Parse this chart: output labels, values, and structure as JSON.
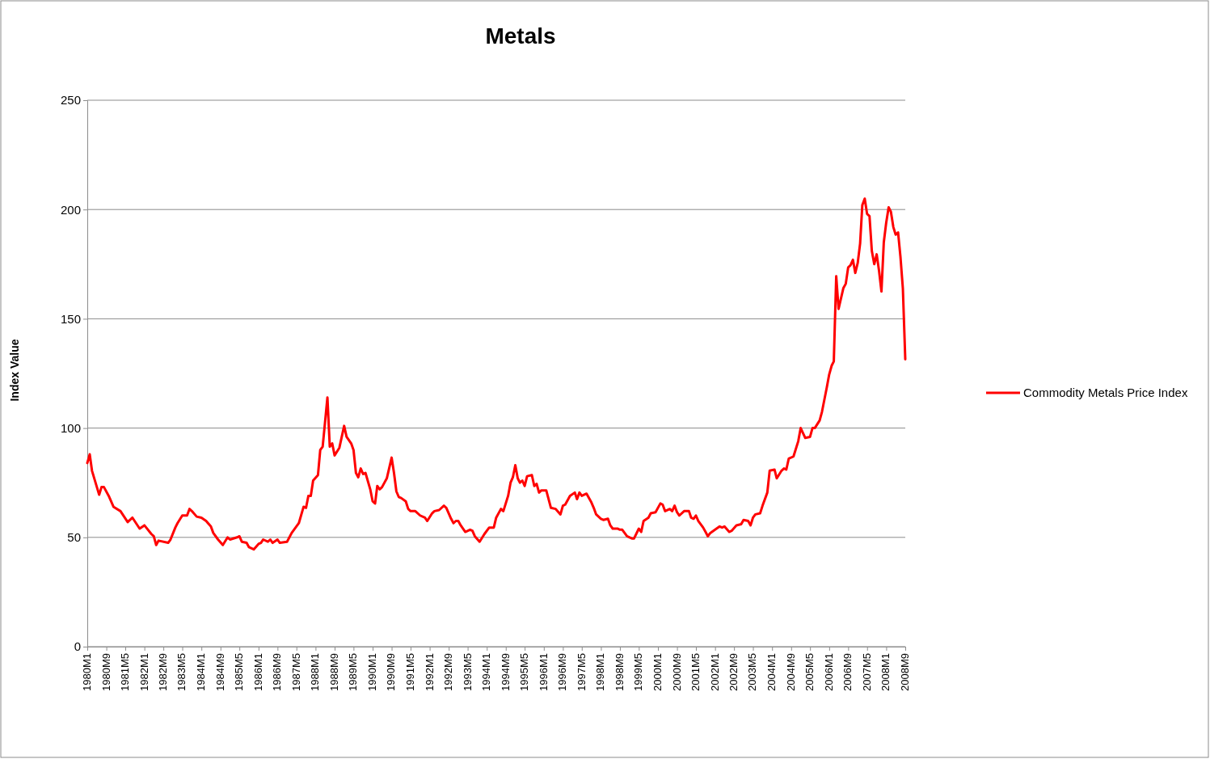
{
  "chart_data": {
    "type": "line",
    "title": "Metals",
    "ylabel": "Index Value",
    "x": [
      "1980-01",
      "1980-02",
      "1980-03",
      "1980-06",
      "1980-07",
      "1980-08",
      "1980-10",
      "1980-12",
      "1981-03",
      "1981-06",
      "1981-08",
      "1981-11",
      "1982-01",
      "1982-04",
      "1982-05",
      "1982-06",
      "1982-07",
      "1982-11",
      "1982-12",
      "1983-02",
      "1983-03",
      "1983-05",
      "1983-07",
      "1983-08",
      "1983-09",
      "1983-11",
      "1984-01",
      "1984-03",
      "1984-05",
      "1984-06",
      "1984-08",
      "1984-10",
      "1984-12",
      "1985-01",
      "1985-04",
      "1985-05",
      "1985-06",
      "1985-08",
      "1985-09",
      "1985-11",
      "1986-01",
      "1986-02",
      "1986-03",
      "1986-05",
      "1986-06",
      "1986-07",
      "1986-09",
      "1986-10",
      "1987-01",
      "1987-03",
      "1987-06",
      "1987-08",
      "1987-09",
      "1987-10",
      "1987-11",
      "1987-12",
      "1988-02",
      "1988-03",
      "1988-04",
      "1988-06",
      "1988-07",
      "1988-08",
      "1988-09",
      "1988-11",
      "1989-01",
      "1989-02",
      "1989-04",
      "1989-05",
      "1989-06",
      "1989-07",
      "1989-08",
      "1989-09",
      "1989-10",
      "1989-12",
      "1990-01",
      "1990-02",
      "1990-03",
      "1990-04",
      "1990-05",
      "1990-07",
      "1990-09",
      "1990-10",
      "1990-11",
      "1990-12",
      "1991-01",
      "1991-03",
      "1991-04",
      "1991-05",
      "1991-07",
      "1991-09",
      "1991-11",
      "1991-12",
      "1992-02",
      "1992-03",
      "1992-05",
      "1992-07",
      "1992-08",
      "1992-10",
      "1992-11",
      "1992-12",
      "1993-01",
      "1993-02",
      "1993-04",
      "1993-06",
      "1993-07",
      "1993-08",
      "1993-10",
      "1993-12",
      "1994-02",
      "1994-04",
      "1994-05",
      "1994-07",
      "1994-08",
      "1994-10",
      "1994-11",
      "1994-12",
      "1995-01",
      "1995-02",
      "1995-03",
      "1995-04",
      "1995-05",
      "1995-06",
      "1995-08",
      "1995-09",
      "1995-10",
      "1995-11",
      "1995-12",
      "1996-02",
      "1996-04",
      "1996-06",
      "1996-08",
      "1996-09",
      "1996-10",
      "1996-12",
      "1997-02",
      "1997-03",
      "1997-04",
      "1997-05",
      "1997-07",
      "1997-09",
      "1997-10",
      "1997-11",
      "1998-01",
      "1998-02",
      "1998-04",
      "1998-05",
      "1998-06",
      "1998-08",
      "1998-09",
      "1998-10",
      "1998-12",
      "1999-02",
      "1999-03",
      "1999-05",
      "1999-06",
      "1999-07",
      "1999-09",
      "1999-10",
      "1999-12",
      "2000-02",
      "2000-03",
      "2000-04",
      "2000-06",
      "2000-07",
      "2000-08",
      "2000-09",
      "2000-10",
      "2000-12",
      "2001-02",
      "2001-03",
      "2001-04",
      "2001-05",
      "2001-06",
      "2001-08",
      "2001-09",
      "2001-10",
      "2001-11",
      "2002-01",
      "2002-03",
      "2002-04",
      "2002-05",
      "2002-07",
      "2002-08",
      "2002-10",
      "2002-12",
      "2003-01",
      "2003-03",
      "2003-04",
      "2003-05",
      "2003-06",
      "2003-08",
      "2003-09",
      "2003-11",
      "2003-12",
      "2004-02",
      "2004-03",
      "2004-05",
      "2004-06",
      "2004-07",
      "2004-08",
      "2004-10",
      "2004-12",
      "2005-01",
      "2005-03",
      "2005-05",
      "2005-06",
      "2005-07",
      "2005-09",
      "2005-10",
      "2005-12",
      "2006-01",
      "2006-02",
      "2006-03",
      "2006-04",
      "2006-05",
      "2006-07",
      "2006-08",
      "2006-09",
      "2006-10",
      "2006-11",
      "2006-12",
      "2007-01",
      "2007-02",
      "2007-03",
      "2007-04",
      "2007-05",
      "2007-06",
      "2007-07",
      "2007-08",
      "2007-09",
      "2007-10",
      "2007-11",
      "2007-12",
      "2008-01",
      "2008-02",
      "2008-03",
      "2008-04",
      "2008-05",
      "2008-06",
      "2008-07",
      "2008-08",
      "2008-09"
    ],
    "series": [
      {
        "name": "Commodity Metals Price Index",
        "color": "#ff0000",
        "values": [
          84,
          88,
          80.5,
          69.5,
          73,
          73,
          69,
          64,
          62,
          57,
          59,
          54,
          55.5,
          51.5,
          50.5,
          46.5,
          48.5,
          47.5,
          49,
          54.5,
          56.5,
          60,
          60,
          63,
          62,
          59.5,
          59,
          57.5,
          55,
          52,
          49,
          46.5,
          50,
          49,
          50,
          50.5,
          48,
          47.5,
          45.5,
          44.5,
          47,
          47.5,
          49,
          48,
          49,
          47.5,
          49,
          47.5,
          48,
          52,
          56.5,
          64,
          63.5,
          69,
          69,
          76,
          78.5,
          90,
          91.5,
          114,
          91.5,
          93,
          87.5,
          91,
          101,
          96,
          93,
          90,
          79.5,
          77.5,
          81.5,
          79,
          79.5,
          72,
          66.5,
          65.5,
          73.5,
          72,
          73,
          77,
          86.5,
          79.5,
          71,
          68.5,
          68,
          66.5,
          63,
          62,
          62,
          60,
          59,
          57.5,
          61,
          62,
          62.5,
          64.5,
          63.5,
          58.5,
          56.5,
          57.5,
          57.5,
          55.5,
          52.5,
          53.5,
          53,
          50.5,
          48,
          51.5,
          54.5,
          54.5,
          59,
          63,
          62,
          69,
          75,
          77.5,
          83,
          77,
          75,
          76,
          73.5,
          78,
          78.5,
          73.5,
          74.5,
          70.5,
          71.5,
          71.5,
          63.5,
          63,
          60.5,
          64.5,
          65,
          69,
          70.5,
          67.5,
          70.5,
          69,
          70,
          66,
          63.5,
          60.5,
          58.5,
          58,
          58.5,
          55.5,
          54,
          54,
          53.5,
          53.5,
          50.5,
          49.5,
          49.5,
          54,
          52.5,
          57.5,
          59,
          61,
          61.5,
          65.5,
          65,
          62,
          63,
          62,
          64.5,
          61.5,
          60,
          62,
          62,
          59,
          58.5,
          60,
          57.5,
          54.5,
          52.5,
          50.5,
          52,
          53.5,
          55,
          54.5,
          55,
          52.5,
          53,
          55.5,
          56,
          58,
          57.5,
          55.5,
          59,
          60.5,
          61,
          64.5,
          70.5,
          80.5,
          81,
          77,
          80.5,
          81.5,
          81,
          86,
          87,
          94,
          100,
          95.5,
          96,
          100,
          100,
          103.5,
          107.5,
          118.5,
          124.5,
          128.5,
          130.5,
          169.5,
          154.5,
          164,
          166,
          173.5,
          174.5,
          177,
          171,
          175.5,
          184.5,
          202,
          205,
          198,
          197,
          181,
          175,
          179.5,
          172,
          162.5,
          185,
          194,
          201,
          199,
          192,
          188.5,
          189.5,
          178.5,
          164,
          131.5
        ]
      }
    ],
    "ylim": [
      0,
      250
    ],
    "yticks": [
      0,
      50,
      100,
      150,
      200,
      250
    ],
    "grid": "y",
    "legend": "right",
    "marker": "none",
    "line_style": "solid",
    "xlim": [
      "1980-01",
      "2008-09"
    ],
    "xticks": [
      {
        "value": "1980-01",
        "label": "1980M1"
      },
      {
        "value": "1980-09",
        "label": "1980M9"
      },
      {
        "value": "1981-05",
        "label": "1981M5"
      },
      {
        "value": "1982-01",
        "label": "1982M1"
      },
      {
        "value": "1982-09",
        "label": "1982M9"
      },
      {
        "value": "1983-05",
        "label": "1983M5"
      },
      {
        "value": "1984-01",
        "label": "1984M1"
      },
      {
        "value": "1984-09",
        "label": "1984M9"
      },
      {
        "value": "1985-05",
        "label": "1985M5"
      },
      {
        "value": "1986-01",
        "label": "1986M1"
      },
      {
        "value": "1986-09",
        "label": "1986M9"
      },
      {
        "value": "1987-05",
        "label": "1987M5"
      },
      {
        "value": "1988-01",
        "label": "1988M1"
      },
      {
        "value": "1988-09",
        "label": "1988M9"
      },
      {
        "value": "1989-05",
        "label": "1989M5"
      },
      {
        "value": "1990-01",
        "label": "1990M1"
      },
      {
        "value": "1990-09",
        "label": "1990M9"
      },
      {
        "value": "1991-05",
        "label": "1991M5"
      },
      {
        "value": "1992-01",
        "label": "1992M1"
      },
      {
        "value": "1992-09",
        "label": "1992M9"
      },
      {
        "value": "1993-05",
        "label": "1993M5"
      },
      {
        "value": "1994-01",
        "label": "1994M1"
      },
      {
        "value": "1994-09",
        "label": "1994M9"
      },
      {
        "value": "1995-05",
        "label": "1995M5"
      },
      {
        "value": "1996-01",
        "label": "1996M1"
      },
      {
        "value": "1996-09",
        "label": "1996M9"
      },
      {
        "value": "1997-05",
        "label": "1997M5"
      },
      {
        "value": "1998-01",
        "label": "1998M1"
      },
      {
        "value": "1998-09",
        "label": "1998M9"
      },
      {
        "value": "1999-05",
        "label": "1999M5"
      },
      {
        "value": "2000-01",
        "label": "2000M1"
      },
      {
        "value": "2000-09",
        "label": "2000M9"
      },
      {
        "value": "2001-05",
        "label": "2001M5"
      },
      {
        "value": "2002-01",
        "label": "2002M1"
      },
      {
        "value": "2002-09",
        "label": "2002M9"
      },
      {
        "value": "2003-05",
        "label": "2003M5"
      },
      {
        "value": "2004-01",
        "label": "2004M1"
      },
      {
        "value": "2004-09",
        "label": "2004M9"
      },
      {
        "value": "2005-05",
        "label": "2005M5"
      },
      {
        "value": "2006-01",
        "label": "2006M1"
      },
      {
        "value": "2006-09",
        "label": "2006M9"
      },
      {
        "value": "2007-05",
        "label": "2007M5"
      },
      {
        "value": "2008-01",
        "label": "2008M1"
      },
      {
        "value": "2008-09",
        "label": "2008M9"
      }
    ]
  }
}
